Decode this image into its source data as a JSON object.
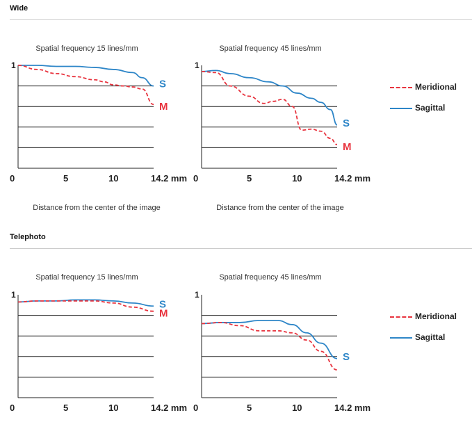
{
  "sections": [
    {
      "title": "Wide"
    },
    {
      "title": "Telephoto"
    }
  ],
  "colors": {
    "meridional": "#e8343f",
    "sagittal": "#2e86c8",
    "grid": "#222222"
  },
  "legend": {
    "meridional": "Meridional",
    "sagittal": "Sagittal"
  },
  "captions": {
    "x": "Distance from the center of the image"
  },
  "chart_data": [
    {
      "type": "line",
      "section": "Wide",
      "title": "Spatial frequency 15 lines/mm",
      "x_ticks": [
        "0",
        "5",
        "10",
        "14.2 mm"
      ],
      "x_tick_values": [
        0,
        5,
        10,
        14.2
      ],
      "y_tick_label": "1",
      "xlim": [
        0,
        14.2
      ],
      "ylim": [
        0,
        1
      ],
      "grid": "horizontal at 0.2 steps",
      "end_labels": {
        "sagittal": "S",
        "meridional": "M"
      },
      "series": [
        {
          "key": "sagittal",
          "x": [
            0,
            2,
            4,
            6,
            8,
            10,
            12,
            13,
            14.2
          ],
          "y": [
            1.0,
            1.0,
            0.99,
            0.99,
            0.98,
            0.96,
            0.93,
            0.88,
            0.8
          ]
        },
        {
          "key": "meridional",
          "x": [
            0,
            2,
            4,
            6,
            8,
            9,
            10,
            11,
            12,
            13,
            14.2
          ],
          "y": [
            1.0,
            0.96,
            0.92,
            0.89,
            0.86,
            0.84,
            0.81,
            0.8,
            0.79,
            0.77,
            0.62
          ]
        }
      ]
    },
    {
      "type": "line",
      "section": "Wide",
      "title": "Spatial frequency 45 lines/mm",
      "x_ticks": [
        "0",
        "5",
        "10",
        "14.2 mm"
      ],
      "x_tick_values": [
        0,
        5,
        10,
        14.2
      ],
      "y_tick_label": "1",
      "xlim": [
        0,
        14.2
      ],
      "ylim": [
        0,
        1
      ],
      "grid": "horizontal at 0.2 steps",
      "end_labels": {
        "sagittal": "S",
        "meridional": "M"
      },
      "series": [
        {
          "key": "sagittal",
          "x": [
            0,
            1.5,
            3,
            5,
            7,
            8.5,
            10,
            11.5,
            12.5,
            13.5,
            14.2
          ],
          "y": [
            0.94,
            0.95,
            0.92,
            0.88,
            0.84,
            0.8,
            0.73,
            0.68,
            0.64,
            0.57,
            0.42
          ]
        },
        {
          "key": "meridional",
          "x": [
            0,
            1.5,
            3,
            5,
            6.5,
            7.5,
            8.5,
            9.5,
            10.5,
            11.5,
            12.5,
            13.5,
            14.2
          ],
          "y": [
            0.94,
            0.93,
            0.8,
            0.7,
            0.63,
            0.65,
            0.67,
            0.6,
            0.37,
            0.38,
            0.36,
            0.29,
            0.23
          ]
        }
      ]
    },
    {
      "type": "line",
      "section": "Telephoto",
      "title": "Spatial frequency 15 lines/mm",
      "x_ticks": [
        "0",
        "5",
        "10",
        "14.2 mm"
      ],
      "x_tick_values": [
        0,
        5,
        10,
        14.2
      ],
      "y_tick_label": "1",
      "xlim": [
        0,
        14.2
      ],
      "ylim": [
        0,
        1
      ],
      "grid": "horizontal at 0.2 steps",
      "end_labels": {
        "sagittal": "S",
        "meridional": "M"
      },
      "series": [
        {
          "key": "sagittal",
          "x": [
            0,
            2,
            4,
            6,
            8,
            10,
            12,
            14.2
          ],
          "y": [
            0.93,
            0.94,
            0.94,
            0.95,
            0.95,
            0.94,
            0.92,
            0.89
          ]
        },
        {
          "key": "meridional",
          "x": [
            0,
            2,
            4,
            6,
            8,
            10,
            12,
            14.2
          ],
          "y": [
            0.93,
            0.94,
            0.94,
            0.94,
            0.94,
            0.92,
            0.88,
            0.84
          ]
        }
      ]
    },
    {
      "type": "line",
      "section": "Telephoto",
      "title": "Spatial frequency 45 lines/mm",
      "x_ticks": [
        "0",
        "5",
        "10",
        "14.2 mm"
      ],
      "x_tick_values": [
        0,
        5,
        10,
        14.2
      ],
      "y_tick_label": "1",
      "xlim": [
        0,
        14.2
      ],
      "ylim": [
        0,
        1
      ],
      "grid": "horizontal at 0.2 steps",
      "end_labels": {
        "sagittal": "S",
        "meridional": ""
      },
      "series": [
        {
          "key": "sagittal",
          "x": [
            0,
            2,
            4,
            6,
            8,
            9.5,
            11,
            12.5,
            14.2
          ],
          "y": [
            0.72,
            0.73,
            0.73,
            0.75,
            0.75,
            0.71,
            0.63,
            0.53,
            0.38
          ]
        },
        {
          "key": "meridional",
          "x": [
            0,
            2,
            4,
            6,
            8,
            9.5,
            11,
            12.5,
            14.2
          ],
          "y": [
            0.72,
            0.73,
            0.7,
            0.65,
            0.65,
            0.63,
            0.56,
            0.45,
            0.27
          ]
        }
      ]
    }
  ]
}
